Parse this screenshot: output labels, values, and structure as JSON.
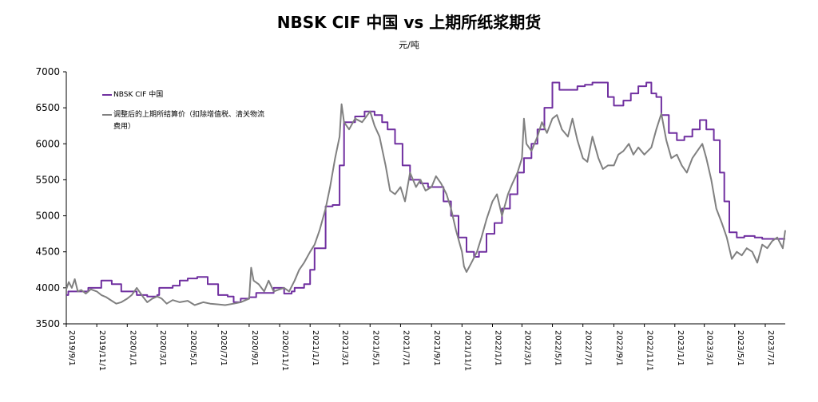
{
  "title": "NBSK CIF 中国 vs 上期所纸浆期货",
  "unit": "元/吨",
  "chart_data": {
    "type": "line",
    "title": "NBSK CIF 中国 vs 上期所纸浆期货",
    "ylabel": "元/吨",
    "ylim": [
      3500,
      7000
    ],
    "yticks": [
      "3500",
      "4000",
      "4500",
      "5000",
      "5500",
      "6000",
      "6500",
      "7000"
    ],
    "xlim": [
      "2019-09-01",
      "2023-08-10"
    ],
    "xticks": [
      "2019/9/1",
      "2019/11/1",
      "2020/1/1",
      "2020/3/1",
      "2020/5/1",
      "2020/7/1",
      "2020/9/1",
      "2020/11/1",
      "2021/1/1",
      "2021/3/1",
      "2021/5/1",
      "2021/7/1",
      "2021/9/1",
      "2021/11/1",
      "2022/1/1",
      "2022/3/1",
      "2022/5/1",
      "2022/7/1",
      "2022/9/1",
      "2022/11/1",
      "2023/1/1",
      "2023/3/1",
      "2023/5/1",
      "2023/7/1"
    ],
    "grid": false,
    "legend": "top-left",
    "series": [
      {
        "name": "NBSK CIF 中国",
        "color": "#7030A0",
        "step": true,
        "points": [
          [
            "2019-09-01",
            3900
          ],
          [
            "2019-09-05",
            3950
          ],
          [
            "2019-10-01",
            3950
          ],
          [
            "2019-10-15",
            4000
          ],
          [
            "2019-11-01",
            4000
          ],
          [
            "2019-11-10",
            4100
          ],
          [
            "2019-12-01",
            4050
          ],
          [
            "2019-12-20",
            3950
          ],
          [
            "2020-01-20",
            3900
          ],
          [
            "2020-02-10",
            3880
          ],
          [
            "2020-03-01",
            3900
          ],
          [
            "2020-03-05",
            4000
          ],
          [
            "2020-04-01",
            4030
          ],
          [
            "2020-04-15",
            4100
          ],
          [
            "2020-05-01",
            4130
          ],
          [
            "2020-05-20",
            4150
          ],
          [
            "2020-06-10",
            4050
          ],
          [
            "2020-07-01",
            3900
          ],
          [
            "2020-07-20",
            3880
          ],
          [
            "2020-08-01",
            3800
          ],
          [
            "2020-08-15",
            3850
          ],
          [
            "2020-09-01",
            3870
          ],
          [
            "2020-09-15",
            3930
          ],
          [
            "2020-10-01",
            3930
          ],
          [
            "2020-10-20",
            4000
          ],
          [
            "2020-11-10",
            3920
          ],
          [
            "2020-11-25",
            3950
          ],
          [
            "2020-12-01",
            4000
          ],
          [
            "2020-12-20",
            4050
          ],
          [
            "2021-01-01",
            4250
          ],
          [
            "2021-01-10",
            4550
          ],
          [
            "2021-01-25",
            4550
          ],
          [
            "2021-02-01",
            5130
          ],
          [
            "2021-02-15",
            5150
          ],
          [
            "2021-03-01",
            5700
          ],
          [
            "2021-03-10",
            6300
          ],
          [
            "2021-04-01",
            6380
          ],
          [
            "2021-04-20",
            6450
          ],
          [
            "2021-05-10",
            6400
          ],
          [
            "2021-05-25",
            6300
          ],
          [
            "2021-06-05",
            6200
          ],
          [
            "2021-06-20",
            6000
          ],
          [
            "2021-07-05",
            5700
          ],
          [
            "2021-07-20",
            5500
          ],
          [
            "2021-08-10",
            5450
          ],
          [
            "2021-08-25",
            5400
          ],
          [
            "2021-09-10",
            5400
          ],
          [
            "2021-09-25",
            5200
          ],
          [
            "2021-10-10",
            5000
          ],
          [
            "2021-10-25",
            4700
          ],
          [
            "2021-11-10",
            4500
          ],
          [
            "2021-11-25",
            4430
          ],
          [
            "2021-12-05",
            4500
          ],
          [
            "2021-12-20",
            4750
          ],
          [
            "2022-01-05",
            4900
          ],
          [
            "2022-01-20",
            5100
          ],
          [
            "2022-02-05",
            5300
          ],
          [
            "2022-02-20",
            5600
          ],
          [
            "2022-03-05",
            5800
          ],
          [
            "2022-03-20",
            6000
          ],
          [
            "2022-04-01",
            6200
          ],
          [
            "2022-04-15",
            6500
          ],
          [
            "2022-05-01",
            6850
          ],
          [
            "2022-05-15",
            6750
          ],
          [
            "2022-06-01",
            6750
          ],
          [
            "2022-06-20",
            6800
          ],
          [
            "2022-07-05",
            6820
          ],
          [
            "2022-07-20",
            6850
          ],
          [
            "2022-08-05",
            6850
          ],
          [
            "2022-08-20",
            6650
          ],
          [
            "2022-09-01",
            6530
          ],
          [
            "2022-09-20",
            6600
          ],
          [
            "2022-10-05",
            6700
          ],
          [
            "2022-10-20",
            6800
          ],
          [
            "2022-11-05",
            6850
          ],
          [
            "2022-11-15",
            6700
          ],
          [
            "2022-11-25",
            6650
          ],
          [
            "2022-12-05",
            6400
          ],
          [
            "2022-12-20",
            6150
          ],
          [
            "2023-01-05",
            6050
          ],
          [
            "2023-01-20",
            6100
          ],
          [
            "2023-02-05",
            6200
          ],
          [
            "2023-02-20",
            6330
          ],
          [
            "2023-03-05",
            6200
          ],
          [
            "2023-03-20",
            6050
          ],
          [
            "2023-04-01",
            5600
          ],
          [
            "2023-04-10",
            5200
          ],
          [
            "2023-04-20",
            4770
          ],
          [
            "2023-05-05",
            4700
          ],
          [
            "2023-05-20",
            4720
          ],
          [
            "2023-06-10",
            4700
          ],
          [
            "2023-06-25",
            4680
          ],
          [
            "2023-08-10",
            4680
          ]
        ]
      },
      {
        "name": "调整后的上期所结算价（扣除增值税、清关物流费用）",
        "color": "#808080",
        "step": false,
        "points": [
          [
            "2019-09-01",
            3980
          ],
          [
            "2019-09-06",
            4080
          ],
          [
            "2019-09-12",
            4000
          ],
          [
            "2019-09-18",
            4120
          ],
          [
            "2019-09-24",
            3950
          ],
          [
            "2019-10-01",
            3970
          ],
          [
            "2019-10-10",
            3920
          ],
          [
            "2019-10-20",
            3980
          ],
          [
            "2019-11-01",
            3950
          ],
          [
            "2019-11-10",
            3900
          ],
          [
            "2019-11-20",
            3870
          ],
          [
            "2019-12-01",
            3820
          ],
          [
            "2019-12-10",
            3780
          ],
          [
            "2019-12-20",
            3800
          ],
          [
            "2020-01-01",
            3850
          ],
          [
            "2020-01-10",
            3900
          ],
          [
            "2020-01-15",
            3950
          ],
          [
            "2020-01-20",
            4000
          ],
          [
            "2020-02-01",
            3880
          ],
          [
            "2020-02-10",
            3800
          ],
          [
            "2020-02-20",
            3850
          ],
          [
            "2020-03-01",
            3880
          ],
          [
            "2020-03-10",
            3850
          ],
          [
            "2020-03-20",
            3780
          ],
          [
            "2020-04-01",
            3830
          ],
          [
            "2020-04-15",
            3800
          ],
          [
            "2020-05-01",
            3820
          ],
          [
            "2020-05-15",
            3760
          ],
          [
            "2020-06-01",
            3800
          ],
          [
            "2020-06-15",
            3780
          ],
          [
            "2020-07-01",
            3770
          ],
          [
            "2020-07-15",
            3760
          ],
          [
            "2020-08-01",
            3780
          ],
          [
            "2020-08-15",
            3800
          ],
          [
            "2020-09-01",
            3850
          ],
          [
            "2020-09-05",
            4280
          ],
          [
            "2020-09-10",
            4100
          ],
          [
            "2020-09-20",
            4050
          ],
          [
            "2020-10-01",
            3950
          ],
          [
            "2020-10-10",
            4100
          ],
          [
            "2020-10-20",
            3950
          ],
          [
            "2020-11-01",
            3980
          ],
          [
            "2020-11-10",
            4000
          ],
          [
            "2020-11-20",
            3950
          ],
          [
            "2020-12-01",
            4100
          ],
          [
            "2020-12-10",
            4250
          ],
          [
            "2020-12-20",
            4350
          ],
          [
            "2021-01-01",
            4500
          ],
          [
            "2021-01-10",
            4600
          ],
          [
            "2021-01-20",
            4800
          ],
          [
            "2021-02-01",
            5100
          ],
          [
            "2021-02-10",
            5400
          ],
          [
            "2021-02-20",
            5800
          ],
          [
            "2021-03-01",
            6100
          ],
          [
            "2021-03-05",
            6550
          ],
          [
            "2021-03-10",
            6300
          ],
          [
            "2021-03-20",
            6200
          ],
          [
            "2021-04-01",
            6350
          ],
          [
            "2021-04-15",
            6300
          ],
          [
            "2021-05-01",
            6450
          ],
          [
            "2021-05-10",
            6250
          ],
          [
            "2021-05-20",
            6100
          ],
          [
            "2021-06-01",
            5700
          ],
          [
            "2021-06-10",
            5350
          ],
          [
            "2021-06-20",
            5300
          ],
          [
            "2021-07-01",
            5400
          ],
          [
            "2021-07-10",
            5200
          ],
          [
            "2021-07-20",
            5600
          ],
          [
            "2021-08-01",
            5400
          ],
          [
            "2021-08-10",
            5500
          ],
          [
            "2021-08-20",
            5350
          ],
          [
            "2021-09-01",
            5400
          ],
          [
            "2021-09-10",
            5550
          ],
          [
            "2021-09-20",
            5450
          ],
          [
            "2021-10-01",
            5300
          ],
          [
            "2021-10-10",
            5100
          ],
          [
            "2021-10-20",
            4800
          ],
          [
            "2021-11-01",
            4500
          ],
          [
            "2021-11-05",
            4300
          ],
          [
            "2021-11-10",
            4220
          ],
          [
            "2021-11-20",
            4350
          ],
          [
            "2021-12-01",
            4500
          ],
          [
            "2021-12-10",
            4700
          ],
          [
            "2021-12-20",
            4950
          ],
          [
            "2022-01-01",
            5200
          ],
          [
            "2022-01-10",
            5300
          ],
          [
            "2022-01-20",
            5000
          ],
          [
            "2022-02-01",
            5300
          ],
          [
            "2022-02-10",
            5450
          ],
          [
            "2022-02-20",
            5600
          ],
          [
            "2022-03-01",
            5800
          ],
          [
            "2022-03-05",
            6350
          ],
          [
            "2022-03-10",
            6000
          ],
          [
            "2022-03-20",
            5900
          ],
          [
            "2022-04-01",
            6100
          ],
          [
            "2022-04-10",
            6300
          ],
          [
            "2022-04-20",
            6150
          ],
          [
            "2022-05-01",
            6350
          ],
          [
            "2022-05-10",
            6400
          ],
          [
            "2022-05-20",
            6200
          ],
          [
            "2022-06-01",
            6100
          ],
          [
            "2022-06-10",
            6350
          ],
          [
            "2022-06-20",
            6050
          ],
          [
            "2022-07-01",
            5800
          ],
          [
            "2022-07-10",
            5750
          ],
          [
            "2022-07-20",
            6100
          ],
          [
            "2022-08-01",
            5800
          ],
          [
            "2022-08-10",
            5650
          ],
          [
            "2022-08-20",
            5700
          ],
          [
            "2022-09-01",
            5700
          ],
          [
            "2022-09-10",
            5850
          ],
          [
            "2022-09-20",
            5900
          ],
          [
            "2022-10-01",
            6000
          ],
          [
            "2022-10-10",
            5850
          ],
          [
            "2022-10-20",
            5950
          ],
          [
            "2022-11-01",
            5850
          ],
          [
            "2022-11-15",
            5950
          ],
          [
            "2022-11-25",
            6200
          ],
          [
            "2022-12-05",
            6420
          ],
          [
            "2022-12-15",
            6050
          ],
          [
            "2022-12-25",
            5800
          ],
          [
            "2023-01-05",
            5850
          ],
          [
            "2023-01-15",
            5700
          ],
          [
            "2023-01-25",
            5600
          ],
          [
            "2023-02-05",
            5800
          ],
          [
            "2023-02-15",
            5900
          ],
          [
            "2023-02-25",
            6000
          ],
          [
            "2023-03-05",
            5800
          ],
          [
            "2023-03-15",
            5500
          ],
          [
            "2023-03-25",
            5100
          ],
          [
            "2023-04-05",
            4900
          ],
          [
            "2023-04-15",
            4700
          ],
          [
            "2023-04-25",
            4400
          ],
          [
            "2023-05-05",
            4500
          ],
          [
            "2023-05-15",
            4450
          ],
          [
            "2023-05-25",
            4550
          ],
          [
            "2023-06-05",
            4500
          ],
          [
            "2023-06-15",
            4350
          ],
          [
            "2023-06-25",
            4600
          ],
          [
            "2023-07-05",
            4550
          ],
          [
            "2023-07-15",
            4650
          ],
          [
            "2023-07-25",
            4700
          ],
          [
            "2023-08-05",
            4550
          ],
          [
            "2023-08-10",
            4800
          ]
        ]
      }
    ]
  }
}
